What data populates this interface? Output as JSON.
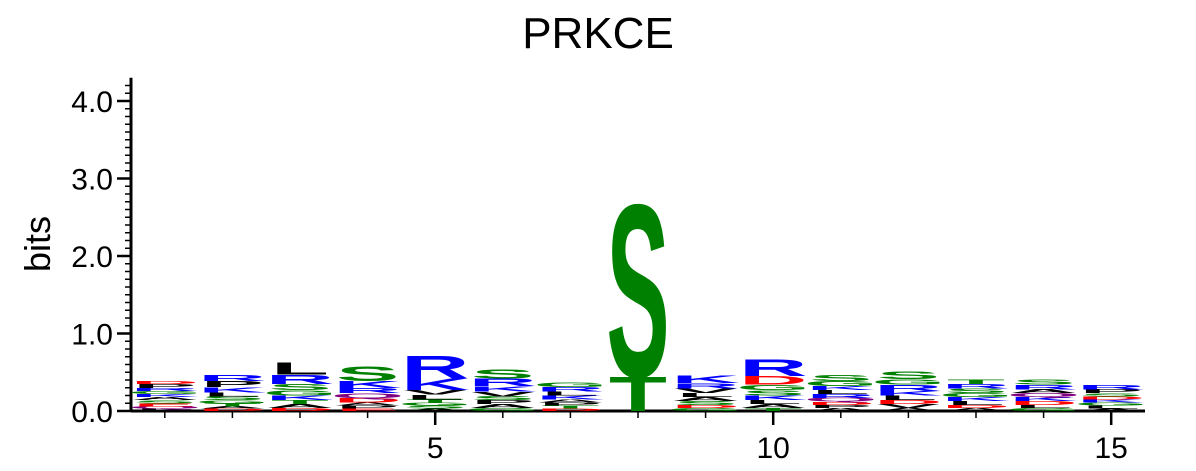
{
  "chart_data": {
    "type": "sequence-logo",
    "title": "PRKCE",
    "ylabel": "bits",
    "ylim": [
      0,
      4.3
    ],
    "y_ticks": [
      "0.0",
      "1.0",
      "2.0",
      "3.0",
      "4.0"
    ],
    "x_range": [
      0.5,
      15.5
    ],
    "x_ticks": [
      "5",
      "10",
      "15"
    ],
    "residue_colors": {
      "S": "#008000",
      "T": "#008000",
      "G": "#008000",
      "R": "#0000ff",
      "K": "#0000ff",
      "H": "#0000ff",
      "D": "#ff0000",
      "E": "#ff0000",
      "Q": "#800080",
      "N": "#800080",
      "L": "#000000",
      "V": "#000000",
      "I": "#000000",
      "M": "#000000",
      "F": "#000000",
      "A": "#000000",
      "P": "#000000",
      "Y": "#000000",
      "W": "#000000",
      "C": "#000000"
    },
    "positions": [
      {
        "pos": 1,
        "letters": [
          [
            "L",
            0.03
          ],
          [
            "Q",
            0.03
          ],
          [
            "E",
            0.04
          ],
          [
            "S",
            0.04
          ],
          [
            "A",
            0.04
          ],
          [
            "K",
            0.04
          ],
          [
            "G",
            0.04
          ],
          [
            "R",
            0.04
          ],
          [
            "P",
            0.05
          ],
          [
            "D",
            0.04
          ]
        ]
      },
      {
        "pos": 2,
        "letters": [
          [
            "D",
            0.03
          ],
          [
            "A",
            0.03
          ],
          [
            "T",
            0.04
          ],
          [
            "G",
            0.04
          ],
          [
            "S",
            0.05
          ],
          [
            "L",
            0.05
          ],
          [
            "K",
            0.07
          ],
          [
            "P",
            0.08
          ],
          [
            "R",
            0.08
          ]
        ]
      },
      {
        "pos": 3,
        "letters": [
          [
            "D",
            0.04
          ],
          [
            "A",
            0.05
          ],
          [
            "T",
            0.05
          ],
          [
            "K",
            0.06
          ],
          [
            "G",
            0.07
          ],
          [
            "S",
            0.08
          ],
          [
            "R",
            0.12
          ],
          [
            "L",
            0.16
          ]
        ]
      },
      {
        "pos": 4,
        "letters": [
          [
            "E",
            0.03
          ],
          [
            "P",
            0.04
          ],
          [
            "A",
            0.04
          ],
          [
            "D",
            0.06
          ],
          [
            "Q",
            0.06
          ],
          [
            "R",
            0.07
          ],
          [
            "K",
            0.09
          ],
          [
            "S",
            0.2
          ]
        ]
      },
      {
        "pos": 5,
        "letters": [
          [
            "A",
            0.03
          ],
          [
            "S",
            0.04
          ],
          [
            "G",
            0.04
          ],
          [
            "T",
            0.04
          ],
          [
            "L",
            0.06
          ],
          [
            "V",
            0.06
          ],
          [
            "K",
            0.15
          ],
          [
            "R",
            0.3
          ]
        ]
      },
      {
        "pos": 6,
        "letters": [
          [
            "G",
            0.04
          ],
          [
            "A",
            0.05
          ],
          [
            "P",
            0.05
          ],
          [
            "S",
            0.05
          ],
          [
            "V",
            0.06
          ],
          [
            "K",
            0.07
          ],
          [
            "R",
            0.1
          ],
          [
            "S",
            0.12
          ]
        ]
      },
      {
        "pos": 7,
        "letters": [
          [
            "D",
            0.03
          ],
          [
            "T",
            0.04
          ],
          [
            "P",
            0.04
          ],
          [
            "A",
            0.04
          ],
          [
            "K",
            0.05
          ],
          [
            "L",
            0.05
          ],
          [
            "R",
            0.06
          ],
          [
            "G",
            0.06
          ]
        ]
      },
      {
        "pos": 8,
        "letters": [
          [
            "T",
            0.45
          ],
          [
            "S",
            2.28
          ]
        ]
      },
      {
        "pos": 9,
        "letters": [
          [
            "G",
            0.04
          ],
          [
            "D",
            0.04
          ],
          [
            "S",
            0.05
          ],
          [
            "A",
            0.05
          ],
          [
            "L",
            0.05
          ],
          [
            "V",
            0.06
          ],
          [
            "R",
            0.07
          ],
          [
            "K",
            0.1
          ]
        ]
      },
      {
        "pos": 10,
        "letters": [
          [
            "T",
            0.04
          ],
          [
            "A",
            0.05
          ],
          [
            "L",
            0.05
          ],
          [
            "K",
            0.06
          ],
          [
            "S",
            0.07
          ],
          [
            "G",
            0.07
          ],
          [
            "D",
            0.11
          ],
          [
            "R",
            0.22
          ]
        ]
      },
      {
        "pos": 11,
        "letters": [
          [
            "A",
            0.04
          ],
          [
            "P",
            0.04
          ],
          [
            "D",
            0.04
          ],
          [
            "Q",
            0.05
          ],
          [
            "R",
            0.05
          ],
          [
            "L",
            0.05
          ],
          [
            "K",
            0.05
          ],
          [
            "G",
            0.07
          ],
          [
            "S",
            0.08
          ]
        ]
      },
      {
        "pos": 12,
        "letters": [
          [
            "A",
            0.04
          ],
          [
            "V",
            0.05
          ],
          [
            "D",
            0.05
          ],
          [
            "L",
            0.06
          ],
          [
            "K",
            0.06
          ],
          [
            "R",
            0.08
          ],
          [
            "G",
            0.07
          ],
          [
            "S",
            0.1
          ]
        ]
      },
      {
        "pos": 13,
        "letters": [
          [
            "A",
            0.04
          ],
          [
            "D",
            0.04
          ],
          [
            "L",
            0.05
          ],
          [
            "K",
            0.05
          ],
          [
            "G",
            0.05
          ],
          [
            "S",
            0.06
          ],
          [
            "R",
            0.06
          ],
          [
            "T",
            0.06
          ]
        ]
      },
      {
        "pos": 14,
        "letters": [
          [
            "G",
            0.04
          ],
          [
            "L",
            0.04
          ],
          [
            "D",
            0.05
          ],
          [
            "K",
            0.05
          ],
          [
            "Q",
            0.05
          ],
          [
            "A",
            0.05
          ],
          [
            "R",
            0.06
          ],
          [
            "S",
            0.07
          ]
        ]
      },
      {
        "pos": 15,
        "letters": [
          [
            "A",
            0.03
          ],
          [
            "L",
            0.04
          ],
          [
            "G",
            0.04
          ],
          [
            "K",
            0.04
          ],
          [
            "D",
            0.04
          ],
          [
            "S",
            0.04
          ],
          [
            "P",
            0.05
          ],
          [
            "R",
            0.06
          ]
        ]
      }
    ]
  }
}
